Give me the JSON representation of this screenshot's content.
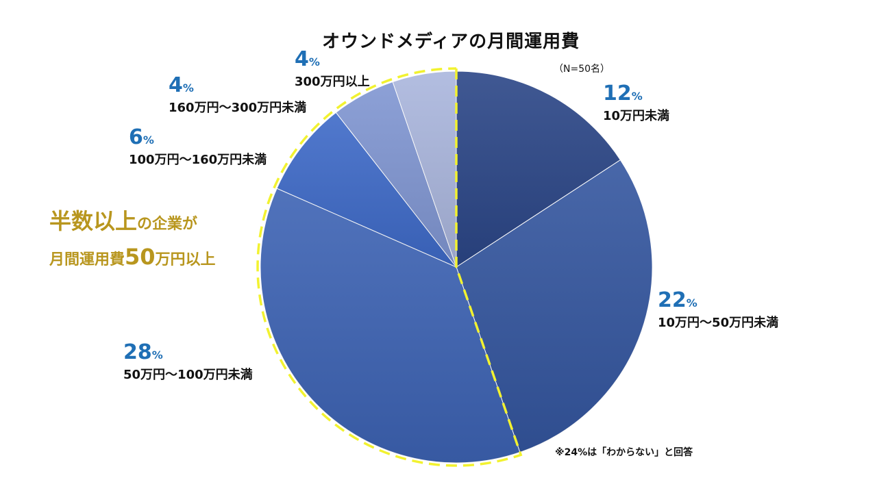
{
  "chart_data": {
    "type": "pie",
    "title": "オウンドメディアの月間運用費",
    "subtitle": "（N=50名）",
    "unit": "%",
    "slices": [
      {
        "value": 12,
        "label": "10万円未満",
        "color": "#2b4687"
      },
      {
        "value": 22,
        "label": "10万円～50万円未満",
        "color": "#34569f"
      },
      {
        "value": 28,
        "label": "50万円～100万円未満",
        "color": "#3d63b4"
      },
      {
        "value": 6,
        "label": "100万円～160万円未満",
        "color": "#3e6ac8"
      },
      {
        "value": 4,
        "label": "160万円～300万円未満",
        "color": "#8096d2"
      },
      {
        "value": 4,
        "label": "300万円以上",
        "color": "#aab6dd"
      }
    ],
    "highlight_color": "#f2f230",
    "callout": {
      "line1_big": "半数以上",
      "line1_small": "の企業が",
      "line2_small_a": "月間運用費",
      "line2_big": "50",
      "line2_small_b": "万円以上",
      "color": "#b8961e"
    },
    "note": "※24%は「わからない」と回答"
  }
}
